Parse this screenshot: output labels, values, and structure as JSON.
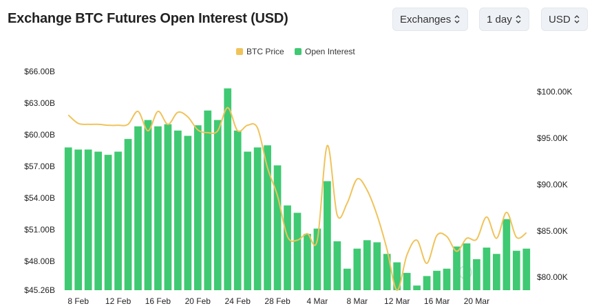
{
  "title": "Exchange BTC Futures Open Interest (USD)",
  "controls": {
    "exchanges": "Exchanges",
    "interval": "1 day",
    "currency": "USD"
  },
  "icons": [
    "chevron-updown-icon",
    "coinglass-watermark-icon"
  ],
  "colors": {
    "oi_bar": "#3fc972",
    "price_line": "#f0c35a",
    "control_bg": "#eef1f5"
  },
  "chart_data": {
    "type": "bar",
    "legend": [
      "BTC Price",
      "Open Interest"
    ],
    "legend_placement": "top-center",
    "grid": false,
    "x_tick_labels": [
      "8 Feb",
      "12 Feb",
      "16 Feb",
      "20 Feb",
      "24 Feb",
      "28 Feb",
      "4 Mar",
      "8 Mar",
      "12 Mar",
      "16 Mar",
      "20 Mar"
    ],
    "y_left_ticks": [
      "$66.00B",
      "$63.00B",
      "$60.00B",
      "$57.00B",
      "$54.00B",
      "$51.00B",
      "$48.00B",
      "$45.26B"
    ],
    "y_right_ticks": [
      "$100.00K",
      "$95.00K",
      "$90.00K",
      "$85.00K",
      "$80.00K"
    ],
    "y_left_range": [
      45.26,
      66.0
    ],
    "y_right_range": [
      78.6,
      102.2
    ],
    "series": [
      {
        "name": "Open Interest",
        "type": "bar",
        "axis": "left",
        "unit": "B USD",
        "values": [
          58.8,
          58.6,
          58.6,
          58.4,
          58.1,
          58.4,
          59.6,
          60.8,
          61.4,
          60.8,
          61.0,
          60.4,
          59.9,
          60.9,
          62.3,
          61.4,
          64.4,
          60.4,
          58.4,
          58.8,
          59.0,
          57.1,
          53.3,
          52.6,
          50.6,
          51.1,
          55.6,
          49.9,
          47.3,
          49.2,
          50.0,
          49.8,
          48.7,
          47.9,
          46.9,
          45.7,
          46.6,
          47.1,
          47.3,
          49.4,
          49.7,
          48.2,
          49.3,
          48.7,
          52.0,
          49.0,
          49.2
        ]
      },
      {
        "name": "BTC Price",
        "type": "line",
        "axis": "right",
        "unit": "K USD",
        "values": [
          97.5,
          96.6,
          96.5,
          96.5,
          96.4,
          96.4,
          96.5,
          97.9,
          95.8,
          97.9,
          96.5,
          97.8,
          97.3,
          95.9,
          95.6,
          95.8,
          98.3,
          95.8,
          96.4,
          96.1,
          91.8,
          88.8,
          84.4,
          84.0,
          84.7,
          84.0,
          94.2,
          86.7,
          88.0,
          90.6,
          89.4,
          86.7,
          83.0,
          78.6,
          82.4,
          84.0,
          81.5,
          84.5,
          84.4,
          82.8,
          84.2,
          84.1,
          86.5,
          84.2,
          87.0,
          84.3,
          84.8
        ]
      }
    ]
  }
}
